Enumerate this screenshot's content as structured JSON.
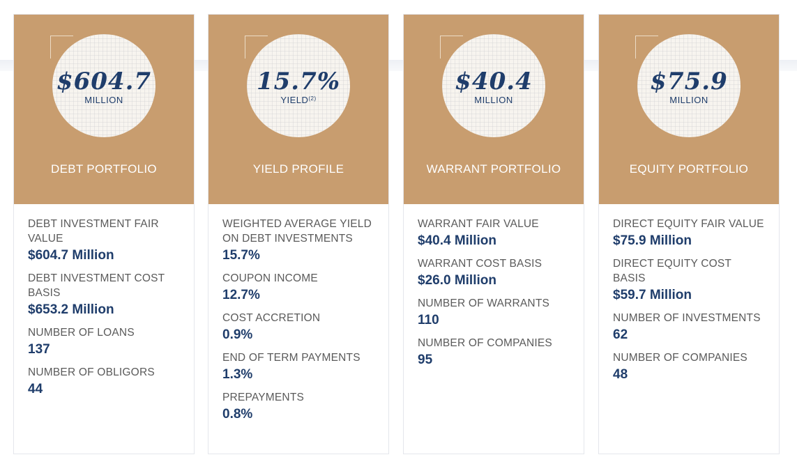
{
  "colors": {
    "card_header": "#c89d6f",
    "accent_text": "#1f3d6b",
    "label_text": "#5a5a5a"
  },
  "cards": [
    {
      "big_value": "$604.7",
      "unit": "MILLION",
      "unit_sup": "",
      "title": "DEBT PORTFOLIO",
      "items": [
        {
          "label": "DEBT INVESTMENT FAIR VALUE",
          "value": "$604.7 Million"
        },
        {
          "label": "DEBT INVESTMENT COST BASIS",
          "value": "$653.2 Million"
        },
        {
          "label": "NUMBER OF LOANS",
          "value": "137"
        },
        {
          "label": "NUMBER OF OBLIGORS",
          "value": "44"
        }
      ]
    },
    {
      "big_value": "15.7%",
      "unit": "YIELD",
      "unit_sup": "(2)",
      "title": "YIELD PROFILE",
      "items": [
        {
          "label": "WEIGHTED AVERAGE YIELD ON DEBT INVESTMENTS",
          "value": "15.7%"
        },
        {
          "label": "COUPON INCOME",
          "value": "12.7%"
        },
        {
          "label": "COST ACCRETION",
          "value": "0.9%"
        },
        {
          "label": "END OF TERM PAYMENTS",
          "value": "1.3%"
        },
        {
          "label": "PREPAYMENTS",
          "value": "0.8%"
        }
      ]
    },
    {
      "big_value": "$40.4",
      "unit": "MILLION",
      "unit_sup": "",
      "title": "WARRANT PORTFOLIO",
      "items": [
        {
          "label": "WARRANT FAIR VALUE",
          "value": "$40.4 Million"
        },
        {
          "label": "WARRANT COST BASIS",
          "value": "$26.0 Million"
        },
        {
          "label": "NUMBER OF WARRANTS",
          "value": "110"
        },
        {
          "label": "NUMBER OF COMPANIES",
          "value": "95"
        }
      ]
    },
    {
      "big_value": "$75.9",
      "unit": "MILLION",
      "unit_sup": "",
      "title": "EQUITY PORTFOLIO",
      "items": [
        {
          "label": "DIRECT EQUITY FAIR VALUE",
          "value": "$75.9 Million"
        },
        {
          "label": "DIRECT EQUITY COST BASIS",
          "value": "$59.7 Million"
        },
        {
          "label": "NUMBER OF INVESTMENTS",
          "value": "62"
        },
        {
          "label": "NUMBER OF COMPANIES",
          "value": "48"
        }
      ]
    }
  ]
}
